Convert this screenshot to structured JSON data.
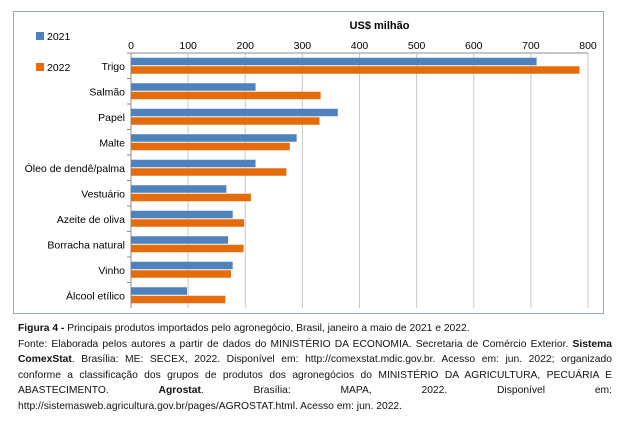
{
  "chart_data": {
    "type": "bar",
    "orientation": "horizontal",
    "axis_title": "US$ milhão",
    "xlim": [
      0,
      800
    ],
    "ticks": [
      "0",
      "100",
      "200",
      "300",
      "400",
      "500",
      "600",
      "700",
      "800"
    ],
    "tick_values": [
      0,
      100,
      200,
      300,
      400,
      500,
      600,
      700,
      800
    ],
    "categories": [
      "Trigo",
      "Salmão",
      "Papel",
      "Malte",
      "Óleo de dendê/palma",
      "Vestuário",
      "Azeite de oliva",
      "Borracha natural",
      "Vinho",
      "Álcool etílico"
    ],
    "series": [
      {
        "name": "2021",
        "color": "#4f81bd",
        "values": [
          710,
          218,
          362,
          290,
          218,
          167,
          178,
          170,
          178,
          98
        ]
      },
      {
        "name": "2022",
        "color": "#e46c0a",
        "values": [
          785,
          332,
          330,
          278,
          272,
          210,
          198,
          197,
          175,
          165
        ]
      }
    ],
    "legend_position": "top-left",
    "grid": "vertical"
  },
  "caption": {
    "figure_label": "Figura 4 -",
    "figure_text": " Principais produtos importados pelo agronegócio, Brasil, janeiro a maio de 2021 e 2022.",
    "source_1": "Fonte: Elaborada pelos autores a partir de dados do MINISTÉRIO DA ECONOMIA. Secretaria de Comércio Exterior. ",
    "source_title_1": "Sistema ComexStat",
    "source_2": ". Brasília: ME: SECEX, 2022. Disponível em: http://comexstat.mdic.gov.br. Acesso em: jun. 2022; organizado conforme a classificação dos grupos de produtos dos agronegócios do MINISTÉRIO DA AGRICULTURA, PECUÁRIA E ABASTECIMENTO. ",
    "source_title_2": "Agrostat",
    "source_3": ". Brasília: MAPA, 2022. Disponível em: http://sistemasweb.agricultura.gov.br/pages/AGROSTAT.html. Acesso em: jun. 2022."
  }
}
